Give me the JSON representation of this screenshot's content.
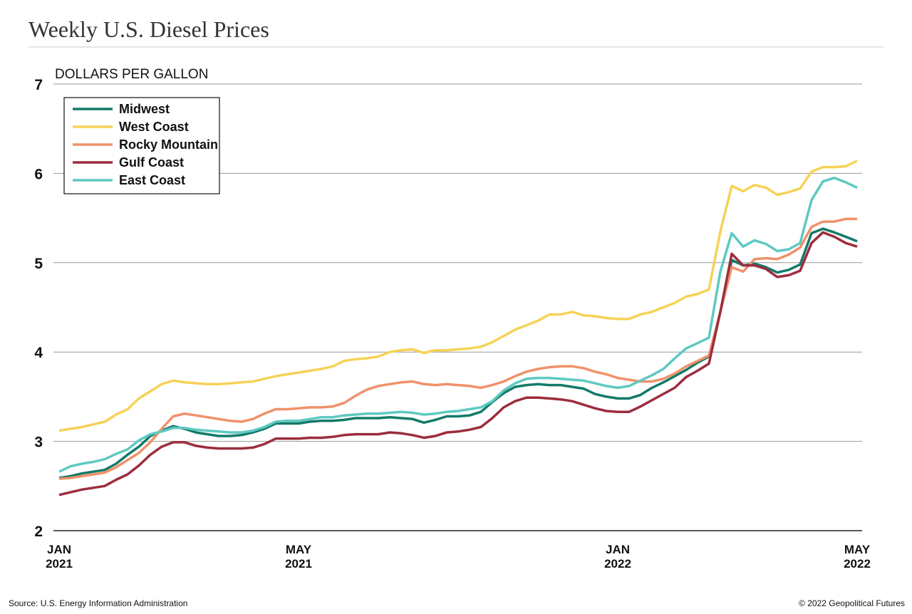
{
  "chart_data": {
    "type": "line",
    "title": "Weekly U.S. Diesel Prices",
    "y_label": "DOLLARS PER GALLON",
    "source": "Source: U.S. Energy Information Administration",
    "credit": "© 2022 Geopolitical Futures",
    "categories": [
      "JAN 2021",
      null,
      null,
      null,
      null,
      null,
      null,
      null,
      null,
      null,
      null,
      null,
      null,
      null,
      null,
      null,
      null,
      null,
      null,
      null,
      null,
      "MAY 2021",
      null,
      null,
      null,
      null,
      null,
      null,
      null,
      null,
      null,
      null,
      null,
      null,
      null,
      null,
      null,
      null,
      null,
      null,
      null,
      null,
      null,
      null,
      null,
      null,
      null,
      null,
      null,
      "JAN 2022",
      null,
      null,
      null,
      null,
      null,
      null,
      null,
      null,
      null,
      null,
      null,
      null,
      null,
      null,
      null,
      null,
      null,
      null,
      null,
      null,
      "MAY 2022"
    ],
    "ylim": [
      2,
      7
    ],
    "yticks": [
      2,
      3,
      4,
      5,
      6,
      7
    ],
    "grid": true,
    "legend": "upper left",
    "series": [
      {
        "name": "Midwest",
        "color": "#137a69",
        "values": [
          2.59,
          2.61,
          2.64,
          2.66,
          2.68,
          2.75,
          2.85,
          2.94,
          3.06,
          3.12,
          3.17,
          3.14,
          3.1,
          3.08,
          3.06,
          3.06,
          3.07,
          3.1,
          3.14,
          3.2,
          3.2,
          3.2,
          3.22,
          3.23,
          3.23,
          3.24,
          3.26,
          3.26,
          3.26,
          3.27,
          3.26,
          3.25,
          3.21,
          3.24,
          3.28,
          3.28,
          3.29,
          3.33,
          3.44,
          3.54,
          3.61,
          3.63,
          3.64,
          3.63,
          3.63,
          3.61,
          3.59,
          3.53,
          3.5,
          3.48,
          3.48,
          3.52,
          3.6,
          3.66,
          3.73,
          3.8,
          3.88,
          3.95,
          4.45,
          5.03,
          4.97,
          4.99,
          4.95,
          4.89,
          4.92,
          4.98,
          5.33,
          5.38,
          5.34,
          5.29,
          5.24
        ]
      },
      {
        "name": "West Coast",
        "color": "#f6d257",
        "values": [
          3.12,
          3.14,
          3.16,
          3.19,
          3.22,
          3.3,
          3.36,
          3.48,
          3.56,
          3.64,
          3.68,
          3.66,
          3.65,
          3.64,
          3.64,
          3.65,
          3.66,
          3.67,
          3.7,
          3.73,
          3.75,
          3.77,
          3.79,
          3.81,
          3.84,
          3.9,
          3.92,
          3.93,
          3.95,
          4.0,
          4.02,
          4.03,
          3.99,
          4.02,
          4.02,
          4.03,
          4.04,
          4.06,
          4.11,
          4.18,
          4.25,
          4.3,
          4.35,
          4.42,
          4.42,
          4.45,
          4.41,
          4.4,
          4.38,
          4.37,
          4.37,
          4.42,
          4.45,
          4.5,
          4.55,
          4.62,
          4.65,
          4.7,
          5.35,
          5.86,
          5.8,
          5.87,
          5.84,
          5.76,
          5.79,
          5.83,
          6.02,
          6.07,
          6.07,
          6.08,
          6.14
        ]
      },
      {
        "name": "Rocky Mountain",
        "color": "#f0916b",
        "values": [
          2.58,
          2.59,
          2.61,
          2.63,
          2.65,
          2.71,
          2.79,
          2.87,
          2.99,
          3.14,
          3.28,
          3.31,
          3.29,
          3.27,
          3.25,
          3.23,
          3.22,
          3.25,
          3.31,
          3.36,
          3.36,
          3.37,
          3.38,
          3.38,
          3.39,
          3.43,
          3.51,
          3.58,
          3.62,
          3.64,
          3.66,
          3.67,
          3.64,
          3.63,
          3.64,
          3.63,
          3.62,
          3.6,
          3.63,
          3.67,
          3.73,
          3.78,
          3.81,
          3.83,
          3.84,
          3.84,
          3.82,
          3.78,
          3.75,
          3.71,
          3.69,
          3.67,
          3.67,
          3.7,
          3.76,
          3.84,
          3.9,
          3.96,
          4.45,
          4.95,
          4.9,
          5.04,
          5.05,
          5.04,
          5.09,
          5.17,
          5.4,
          5.46,
          5.46,
          5.49,
          5.49
        ]
      },
      {
        "name": "Gulf Coast",
        "color": "#9c2d3e",
        "values": [
          2.4,
          2.43,
          2.46,
          2.48,
          2.5,
          2.57,
          2.63,
          2.73,
          2.85,
          2.94,
          2.99,
          2.99,
          2.95,
          2.93,
          2.92,
          2.92,
          2.92,
          2.93,
          2.97,
          3.03,
          3.03,
          3.03,
          3.04,
          3.04,
          3.05,
          3.07,
          3.08,
          3.08,
          3.08,
          3.1,
          3.09,
          3.07,
          3.04,
          3.06,
          3.1,
          3.11,
          3.13,
          3.16,
          3.26,
          3.38,
          3.45,
          3.49,
          3.49,
          3.48,
          3.47,
          3.45,
          3.41,
          3.37,
          3.34,
          3.33,
          3.33,
          3.39,
          3.46,
          3.53,
          3.6,
          3.72,
          3.79,
          3.87,
          4.45,
          5.1,
          4.97,
          4.97,
          4.93,
          4.84,
          4.86,
          4.91,
          5.22,
          5.34,
          5.29,
          5.22,
          5.18
        ]
      },
      {
        "name": "East Coast",
        "color": "#5ec9c1",
        "values": [
          2.66,
          2.72,
          2.75,
          2.77,
          2.8,
          2.86,
          2.91,
          3.01,
          3.08,
          3.11,
          3.15,
          3.15,
          3.13,
          3.12,
          3.11,
          3.1,
          3.1,
          3.12,
          3.16,
          3.22,
          3.23,
          3.23,
          3.25,
          3.27,
          3.27,
          3.29,
          3.3,
          3.31,
          3.31,
          3.32,
          3.33,
          3.32,
          3.3,
          3.31,
          3.33,
          3.34,
          3.36,
          3.38,
          3.45,
          3.57,
          3.65,
          3.7,
          3.71,
          3.71,
          3.7,
          3.69,
          3.68,
          3.65,
          3.62,
          3.6,
          3.62,
          3.68,
          3.74,
          3.81,
          3.93,
          4.04,
          4.1,
          4.16,
          4.9,
          5.33,
          5.18,
          5.25,
          5.21,
          5.13,
          5.15,
          5.22,
          5.7,
          5.91,
          5.95,
          5.9,
          5.84
        ]
      }
    ]
  }
}
